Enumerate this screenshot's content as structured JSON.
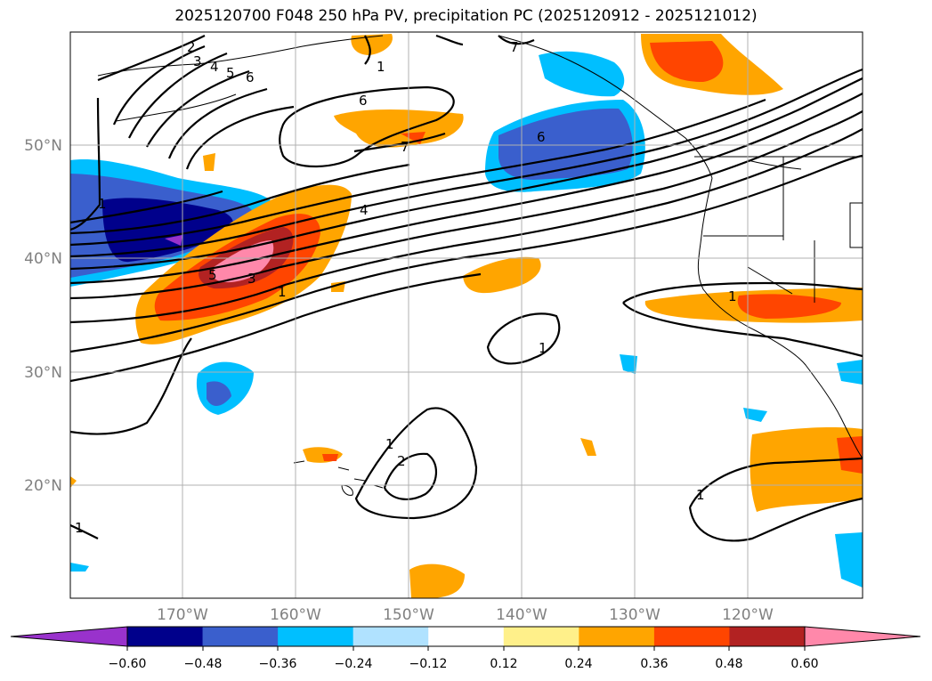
{
  "title": "2025120700 F048 250 hPa PV, precipitation PC (2025120912 - 2025121012)",
  "map": {
    "lon_labels": [
      "170°W",
      "160°W",
      "150°W",
      "140°W",
      "130°W",
      "120°W"
    ],
    "lat_labels": [
      "50°N",
      "40°N",
      "30°N",
      "20°N"
    ]
  },
  "contour_labels": [
    "2",
    "3",
    "4",
    "5",
    "6",
    "6",
    "7",
    "7",
    "1",
    "1",
    "6",
    "4",
    "5",
    "3",
    "1",
    "1",
    "1",
    "2",
    "1",
    "1",
    "1"
  ],
  "colorbar": {
    "colors": [
      "#9932cc",
      "#00008b",
      "#3a5fcd",
      "#00bfff",
      "#b0e2ff",
      "#ffffff",
      "#fff08a",
      "#ffa500",
      "#ff4500",
      "#b22222",
      "#ff88aa"
    ],
    "tick_labels": [
      "−0.60",
      "−0.48",
      "−0.36",
      "−0.24",
      "−0.12",
      "0.12",
      "0.24",
      "0.36",
      "0.48",
      "0.60"
    ]
  }
}
